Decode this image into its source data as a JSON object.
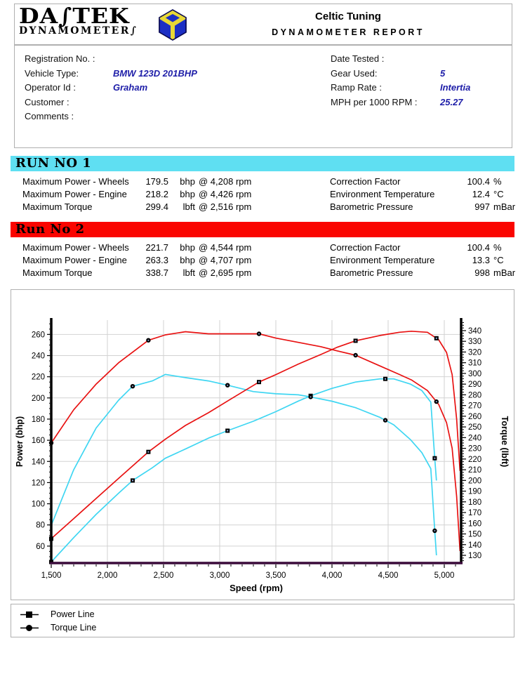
{
  "header": {
    "logo_line1": "DA∫TEK",
    "logo_line2": "DYNAMOMETER∫",
    "company": "Celtic Tuning",
    "report_title": "DYNAMOMETER REPORT"
  },
  "info": {
    "left": [
      {
        "label": "Registration No. :",
        "value": ""
      },
      {
        "label": "Vehicle Type:",
        "value": "BMW 123D 201BHP"
      },
      {
        "label": "Operator Id :",
        "value": "Graham"
      },
      {
        "label": "Customer :",
        "value": ""
      },
      {
        "label": "Comments :",
        "value": ""
      }
    ],
    "right": [
      {
        "label": "Date Tested :",
        "value": ""
      },
      {
        "label": "Gear Used:",
        "value": "5"
      },
      {
        "label": "Ramp Rate :",
        "value": "Intertia"
      },
      {
        "label": "MPH per 1000 RPM :",
        "value": "25.27"
      }
    ]
  },
  "colors": {
    "run1_banner": "#5FDFF2",
    "run2_banner": "#FA0500",
    "run1_line": "#3FD6F2",
    "run2_line": "#E81111",
    "x_axis": "#3A0A3A",
    "grid": "#d2d2d2",
    "value_blue": "#1d1da8"
  },
  "runs": [
    {
      "title": "RUN NO 1",
      "banner_color": "#5FDFF2",
      "metrics": [
        {
          "label": "Maximum Power - Wheels",
          "value": "179.5",
          "unit": "bhp",
          "at": "@ 4,208 rpm"
        },
        {
          "label": "Maximum Power - Engine",
          "value": "218.2",
          "unit": "bhp",
          "at": "@ 4,426 rpm"
        },
        {
          "label": "Maximum Torque",
          "value": "299.4",
          "unit": "lbft",
          "at": "@ 2,516 rpm"
        }
      ],
      "conditions": [
        {
          "label": "Correction Factor",
          "value": "100.4",
          "unit": "%"
        },
        {
          "label": "Environment Temperature",
          "value": "12.4",
          "unit": "°C"
        },
        {
          "label": "Barometric Pressure",
          "value": "997",
          "unit": "mBar"
        }
      ]
    },
    {
      "title": "Run No 2",
      "banner_color": "#FA0500",
      "metrics": [
        {
          "label": "Maximum Power - Wheels",
          "value": "221.7",
          "unit": "bhp",
          "at": "@ 4,544 rpm"
        },
        {
          "label": "Maximum Power - Engine",
          "value": "263.3",
          "unit": "bhp",
          "at": "@ 4,707 rpm"
        },
        {
          "label": "Maximum Torque",
          "value": "338.7",
          "unit": "lbft",
          "at": "@ 2,695 rpm"
        }
      ],
      "conditions": [
        {
          "label": "Correction Factor",
          "value": "100.4",
          "unit": "%"
        },
        {
          "label": "Environment Temperature",
          "value": "13.3",
          "unit": "°C"
        },
        {
          "label": "Barometric Pressure",
          "value": "998",
          "unit": "mBar"
        }
      ]
    }
  ],
  "chart_data": {
    "type": "line",
    "xlabel": "Speed (rpm)",
    "ylabel_left": "Power (bhp)",
    "ylabel_right": "Torque (lbft)",
    "x_range": [
      1500,
      5150
    ],
    "x_ticks": [
      1500,
      2000,
      2500,
      3000,
      3500,
      4000,
      4500,
      5000
    ],
    "x_tick_labels": [
      "1,500",
      "2,000",
      "2,500",
      "3,000",
      "3,500",
      "4,000",
      "4,500",
      "5,000"
    ],
    "power_range": [
      44,
      273.5
    ],
    "power_ticks": [
      60,
      80,
      100,
      120,
      140,
      160,
      180,
      200,
      220,
      240,
      260
    ],
    "torque_range": [
      122.8,
      349.8
    ],
    "torque_ticks": [
      130,
      140,
      150,
      160,
      170,
      180,
      190,
      200,
      210,
      220,
      230,
      240,
      250,
      260,
      270,
      280,
      290,
      300,
      310,
      320,
      330,
      340
    ],
    "grid": true,
    "legend_position": "bottom-box",
    "series": [
      {
        "name": "Run 1 Power Line",
        "axis": "power",
        "color": "#3FD6F2",
        "marker": "square",
        "marker_rpms": [
          1500,
          2225,
          3070,
          3810,
          4475,
          4915
        ],
        "points": [
          [
            1500,
            45
          ],
          [
            1700,
            68
          ],
          [
            1900,
            90
          ],
          [
            2100,
            110
          ],
          [
            2225,
            122
          ],
          [
            2400,
            134
          ],
          [
            2516,
            143
          ],
          [
            2700,
            152
          ],
          [
            2900,
            162
          ],
          [
            3070,
            169
          ],
          [
            3300,
            178
          ],
          [
            3500,
            187
          ],
          [
            3700,
            197
          ],
          [
            3810,
            202
          ],
          [
            4000,
            209
          ],
          [
            4210,
            215
          ],
          [
            4426,
            218
          ],
          [
            4550,
            218
          ],
          [
            4700,
            213
          ],
          [
            4800,
            207
          ],
          [
            4880,
            196
          ],
          [
            4915,
            143
          ],
          [
            4930,
            122
          ]
        ]
      },
      {
        "name": "Run 1 Torque Line",
        "axis": "torque",
        "color": "#3FD6F2",
        "marker": "circle",
        "marker_rpms": [
          2225,
          3070,
          3810,
          4475,
          4915
        ],
        "points": [
          [
            1500,
            158
          ],
          [
            1700,
            210
          ],
          [
            1900,
            249
          ],
          [
            2100,
            275
          ],
          [
            2225,
            288
          ],
          [
            2400,
            293
          ],
          [
            2516,
            299
          ],
          [
            2700,
            296
          ],
          [
            2900,
            293
          ],
          [
            3070,
            289
          ],
          [
            3300,
            283
          ],
          [
            3500,
            281
          ],
          [
            3700,
            280
          ],
          [
            3810,
            278
          ],
          [
            4000,
            274
          ],
          [
            4210,
            268
          ],
          [
            4426,
            259
          ],
          [
            4550,
            252
          ],
          [
            4700,
            238
          ],
          [
            4800,
            226
          ],
          [
            4880,
            211
          ],
          [
            4915,
            153
          ],
          [
            4930,
            130
          ]
        ]
      },
      {
        "name": "Run 2 Power Line",
        "axis": "power",
        "color": "#E81111",
        "marker": "square",
        "marker_rpms": [
          1500,
          2365,
          3350,
          4210,
          4930
        ],
        "points": [
          [
            1500,
            67
          ],
          [
            1700,
            86
          ],
          [
            1900,
            105
          ],
          [
            2100,
            124
          ],
          [
            2365,
            149
          ],
          [
            2516,
            161
          ],
          [
            2695,
            174
          ],
          [
            2900,
            186
          ],
          [
            3100,
            199
          ],
          [
            3350,
            215
          ],
          [
            3500,
            222
          ],
          [
            3700,
            232
          ],
          [
            3900,
            241
          ],
          [
            4050,
            248
          ],
          [
            4210,
            254
          ],
          [
            4426,
            259
          ],
          [
            4600,
            262
          ],
          [
            4707,
            263
          ],
          [
            4850,
            262
          ],
          [
            4950,
            255
          ],
          [
            5020,
            243
          ],
          [
            5070,
            222
          ],
          [
            5110,
            180
          ],
          [
            5140,
            131
          ]
        ]
      },
      {
        "name": "Run 2 Torque Line",
        "axis": "torque",
        "color": "#E81111",
        "marker": "circle",
        "marker_rpms": [
          1500,
          2365,
          3350,
          4210,
          4930
        ],
        "points": [
          [
            1500,
            235
          ],
          [
            1700,
            266
          ],
          [
            1900,
            290
          ],
          [
            2100,
            310
          ],
          [
            2365,
            331
          ],
          [
            2516,
            336
          ],
          [
            2695,
            339
          ],
          [
            2900,
            337
          ],
          [
            3100,
            337
          ],
          [
            3350,
            337
          ],
          [
            3500,
            333
          ],
          [
            3700,
            329
          ],
          [
            3900,
            325
          ],
          [
            4050,
            321
          ],
          [
            4210,
            317
          ],
          [
            4426,
            307
          ],
          [
            4600,
            299
          ],
          [
            4707,
            294
          ],
          [
            4850,
            284
          ],
          [
            4950,
            271
          ],
          [
            5020,
            254
          ],
          [
            5070,
            230
          ],
          [
            5110,
            185
          ],
          [
            5140,
            134
          ]
        ]
      }
    ]
  },
  "legend": [
    {
      "marker": "square",
      "label": "Power Line"
    },
    {
      "marker": "circle",
      "label": "Torque Line"
    }
  ]
}
